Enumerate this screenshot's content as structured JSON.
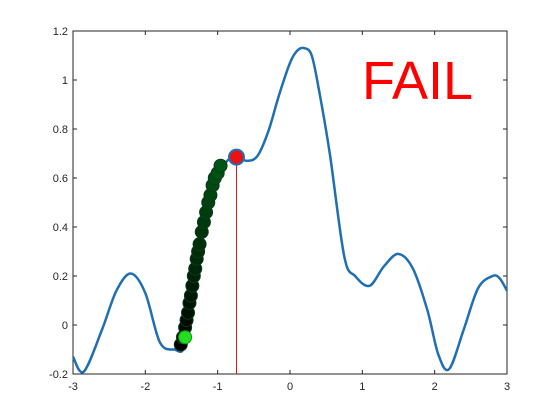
{
  "chart_data": {
    "type": "line",
    "title": "",
    "xlabel": "",
    "ylabel": "",
    "xlim": [
      -3,
      3
    ],
    "ylim": [
      -0.2,
      1.2
    ],
    "grid": false,
    "x_ticks": [
      -3,
      -2,
      -1,
      0,
      1,
      2,
      3
    ],
    "x_tick_labels": [
      "-3",
      "-2",
      "-1",
      "0",
      "1",
      "2",
      "3"
    ],
    "y_ticks": [
      -0.2,
      0,
      0.2,
      0.4,
      0.6,
      0.8,
      1,
      1.2
    ],
    "y_tick_labels": [
      "-0.2",
      "0",
      "0.2",
      "0.4",
      "0.6",
      "0.8",
      "1",
      "1.2"
    ],
    "series": [
      {
        "kind": "curve",
        "color": "#1f6fb2",
        "x": [
          -3.0,
          -2.85,
          -2.6,
          -2.4,
          -2.2,
          -2.0,
          -1.8,
          -1.6,
          -1.45,
          -1.3,
          -1.15,
          -1.0,
          -0.9,
          -0.75,
          -0.6,
          -0.45,
          -0.3,
          -0.15,
          0.0,
          0.1,
          0.2,
          0.3,
          0.4,
          0.55,
          0.75,
          0.9,
          1.1,
          1.3,
          1.5,
          1.7,
          1.9,
          2.05,
          2.2,
          2.4,
          2.6,
          2.8,
          2.9,
          3.0
        ],
        "y": [
          -0.13,
          -0.19,
          -0.02,
          0.14,
          0.21,
          0.13,
          -0.07,
          -0.1,
          -0.08,
          0.2,
          0.45,
          0.6,
          0.66,
          0.69,
          0.67,
          0.69,
          0.79,
          0.94,
          1.07,
          1.12,
          1.13,
          1.1,
          0.96,
          0.7,
          0.28,
          0.2,
          0.16,
          0.24,
          0.29,
          0.23,
          0.06,
          -0.12,
          -0.18,
          -0.02,
          0.15,
          0.2,
          0.19,
          0.14
        ]
      },
      {
        "kind": "path-markers",
        "x": [
          -1.51,
          -1.48,
          -1.45,
          -1.43,
          -1.41,
          -1.39,
          -1.37,
          -1.35,
          -1.33,
          -1.31,
          -1.29,
          -1.27,
          -1.25,
          -1.22,
          -1.19,
          -1.16,
          -1.13,
          -1.1,
          -1.07,
          -1.04,
          -1.0,
          -0.96
        ],
        "y": [
          -0.08,
          -0.05,
          -0.01,
          0.02,
          0.05,
          0.09,
          0.12,
          0.16,
          0.2,
          0.23,
          0.27,
          0.3,
          0.33,
          0.38,
          0.42,
          0.46,
          0.5,
          0.53,
          0.57,
          0.6,
          0.62,
          0.65
        ]
      },
      {
        "kind": "start-marker",
        "color": "#22dd22",
        "x": [
          -1.45
        ],
        "y": [
          -0.05
        ]
      },
      {
        "kind": "end-marker",
        "color": "#ee1111",
        "x": [
          -0.74
        ],
        "y": [
          0.685
        ]
      }
    ],
    "vertical_line": {
      "x": -0.74,
      "color": "#dd1111"
    },
    "annotation": {
      "text": "FAIL",
      "color": "#ff0000"
    }
  }
}
